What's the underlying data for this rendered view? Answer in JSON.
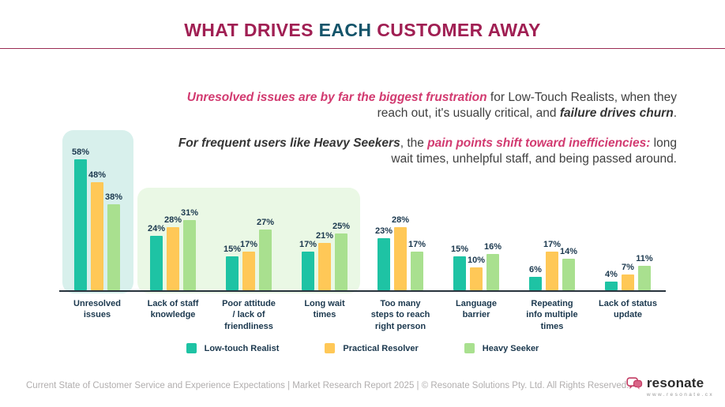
{
  "header": {
    "title_pre": "WHAT DRIVES ",
    "title_highlight": "EACH",
    "title_post": " CUSTOMER AWAY"
  },
  "insights": {
    "paragraph1": [
      {
        "t": "Unresolved issues are by far the biggest frustration",
        "s": "em-pink"
      },
      {
        "t": " for Low-Touch Realists,  when they reach out, it's usually critical, and ",
        "s": "plain"
      },
      {
        "t": "failure drives churn",
        "s": "em-dark"
      },
      {
        "t": ".",
        "s": "plain"
      }
    ],
    "paragraph2": [
      {
        "t": "For frequent users like Heavy Seekers",
        "s": "em-dark"
      },
      {
        "t": ", the ",
        "s": "plain"
      },
      {
        "t": "pain points shift toward inefficiencies:",
        "s": "em-pink"
      },
      {
        "t": " long wait times, unhelpful staff, and being passed around.",
        "s": "plain"
      }
    ]
  },
  "chart_data": {
    "type": "bar",
    "categories": [
      "Unresolved\nissues",
      "Lack of staff\nknowledge",
      "Poor attitude\n/ lack of\nfriendliness",
      "Long wait\ntimes",
      "Too many\nsteps to reach\nright person",
      "Language\nbarrier",
      "Repeating\ninfo multiple\ntimes",
      "Lack of status\nupdate"
    ],
    "series": [
      {
        "name": "Low-touch Realist",
        "color": "#1EC3A4",
        "values": [
          58,
          24,
          15,
          17,
          23,
          15,
          6,
          4
        ]
      },
      {
        "name": "Practical Resolver",
        "color": "#FFC857",
        "values": [
          48,
          28,
          17,
          21,
          28,
          10,
          17,
          7
        ]
      },
      {
        "name": "Heavy Seeker",
        "color": "#A9E08F",
        "values": [
          38,
          31,
          27,
          25,
          17,
          16,
          14,
          11
        ]
      }
    ],
    "value_suffix": "%",
    "ylim": [
      0,
      58
    ],
    "grid": false,
    "legend_position": "bottom",
    "highlight_boxes": [
      {
        "name": "unresolved-issues-highlight",
        "color": "#D8F0EC",
        "covers": "Unresolved issues"
      },
      {
        "name": "inefficiency-highlight",
        "color": "#EAF8E5",
        "covers": "Lack of staff knowledge, Poor attitude / lack of friendliness, Long wait times"
      }
    ]
  },
  "footer": {
    "text": "Current State of Customer Service and Experience Expectations | Market Research Report 2025 | © Resonate Solutions Pty. Ltd. All Rights Reserved.",
    "logo_text": "resonate",
    "logo_url_text": "www.resonate.cx"
  }
}
